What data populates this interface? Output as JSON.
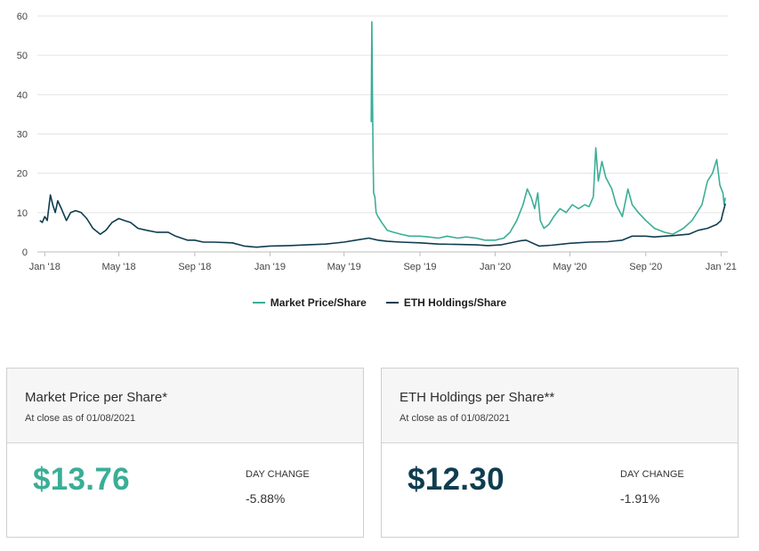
{
  "chart_data": {
    "type": "line",
    "ylim": [
      0,
      60
    ],
    "yticks": [
      0,
      10,
      20,
      30,
      40,
      50,
      60
    ],
    "xrange": [
      "2017-12-20",
      "2021-01-12"
    ],
    "xticks": [
      {
        "label": "Jan '18",
        "date": "2018-01-01"
      },
      {
        "label": "May '18",
        "date": "2018-05-01"
      },
      {
        "label": "Sep '18",
        "date": "2018-09-01"
      },
      {
        "label": "Jan '19",
        "date": "2019-01-01"
      },
      {
        "label": "May '19",
        "date": "2019-05-01"
      },
      {
        "label": "Sep '19",
        "date": "2019-09-01"
      },
      {
        "label": "Jan '20",
        "date": "2020-01-01"
      },
      {
        "label": "May '20",
        "date": "2020-05-01"
      },
      {
        "label": "Sep '20",
        "date": "2020-09-01"
      },
      {
        "label": "Jan '21",
        "date": "2021-01-01"
      }
    ],
    "grid": true,
    "legend_position": "bottom-center",
    "series": [
      {
        "name": "Market Price/Share",
        "color": "#3aae96",
        "points": [
          [
            "2019-06-14",
            33
          ],
          [
            "2019-06-15",
            58.5
          ],
          [
            "2019-06-16",
            40
          ],
          [
            "2019-06-17",
            24.5
          ],
          [
            "2019-06-18",
            15
          ],
          [
            "2019-06-20",
            14
          ],
          [
            "2019-06-22",
            10
          ],
          [
            "2019-06-25",
            9
          ],
          [
            "2019-07-01",
            7.5
          ],
          [
            "2019-07-10",
            5.5
          ],
          [
            "2019-07-20",
            5
          ],
          [
            "2019-08-01",
            4.5
          ],
          [
            "2019-08-15",
            4
          ],
          [
            "2019-09-01",
            4
          ],
          [
            "2019-09-15",
            3.8
          ],
          [
            "2019-10-01",
            3.5
          ],
          [
            "2019-10-15",
            4
          ],
          [
            "2019-11-01",
            3.5
          ],
          [
            "2019-11-15",
            3.8
          ],
          [
            "2019-12-01",
            3.5
          ],
          [
            "2019-12-15",
            3
          ],
          [
            "2020-01-01",
            3
          ],
          [
            "2020-01-15",
            3.5
          ],
          [
            "2020-01-25",
            5
          ],
          [
            "2020-02-05",
            8
          ],
          [
            "2020-02-15",
            12
          ],
          [
            "2020-02-22",
            16
          ],
          [
            "2020-02-28",
            14
          ],
          [
            "2020-03-05",
            11
          ],
          [
            "2020-03-10",
            15
          ],
          [
            "2020-03-14",
            8
          ],
          [
            "2020-03-20",
            6
          ],
          [
            "2020-03-28",
            7
          ],
          [
            "2020-04-05",
            9
          ],
          [
            "2020-04-15",
            11
          ],
          [
            "2020-04-25",
            10
          ],
          [
            "2020-05-05",
            12
          ],
          [
            "2020-05-15",
            11
          ],
          [
            "2020-05-25",
            12
          ],
          [
            "2020-06-01",
            11.5
          ],
          [
            "2020-06-08",
            14
          ],
          [
            "2020-06-12",
            26.5
          ],
          [
            "2020-06-16",
            18
          ],
          [
            "2020-06-22",
            23
          ],
          [
            "2020-06-28",
            19
          ],
          [
            "2020-07-08",
            16
          ],
          [
            "2020-07-15",
            12
          ],
          [
            "2020-07-25",
            9
          ],
          [
            "2020-08-03",
            16
          ],
          [
            "2020-08-10",
            12
          ],
          [
            "2020-08-20",
            10
          ],
          [
            "2020-09-01",
            8
          ],
          [
            "2020-09-15",
            6
          ],
          [
            "2020-10-01",
            5
          ],
          [
            "2020-10-15",
            4.5
          ],
          [
            "2020-11-01",
            6
          ],
          [
            "2020-11-15",
            8
          ],
          [
            "2020-12-01",
            12
          ],
          [
            "2020-12-10",
            18
          ],
          [
            "2020-12-18",
            20
          ],
          [
            "2020-12-25",
            23.5
          ],
          [
            "2020-12-30",
            17
          ],
          [
            "2021-01-04",
            15
          ],
          [
            "2021-01-06",
            12
          ],
          [
            "2021-01-08",
            13.8
          ]
        ]
      },
      {
        "name": "ETH Holdings/Share",
        "color": "#0f3d4f",
        "points": [
          [
            "2017-12-24",
            8
          ],
          [
            "2017-12-28",
            7.5
          ],
          [
            "2018-01-01",
            9
          ],
          [
            "2018-01-05",
            8
          ],
          [
            "2018-01-10",
            14.5
          ],
          [
            "2018-01-14",
            12
          ],
          [
            "2018-01-18",
            10
          ],
          [
            "2018-01-22",
            13
          ],
          [
            "2018-01-28",
            11
          ],
          [
            "2018-02-05",
            8
          ],
          [
            "2018-02-12",
            10
          ],
          [
            "2018-02-20",
            10.5
          ],
          [
            "2018-03-01",
            10
          ],
          [
            "2018-03-10",
            8.5
          ],
          [
            "2018-03-20",
            6
          ],
          [
            "2018-04-01",
            4.5
          ],
          [
            "2018-04-10",
            5.5
          ],
          [
            "2018-04-20",
            7.5
          ],
          [
            "2018-05-01",
            8.5
          ],
          [
            "2018-05-10",
            8
          ],
          [
            "2018-05-20",
            7.5
          ],
          [
            "2018-06-01",
            6
          ],
          [
            "2018-06-15",
            5.5
          ],
          [
            "2018-07-01",
            5
          ],
          [
            "2018-07-20",
            5
          ],
          [
            "2018-08-01",
            4
          ],
          [
            "2018-08-20",
            3
          ],
          [
            "2018-09-01",
            3
          ],
          [
            "2018-09-15",
            2.5
          ],
          [
            "2018-10-01",
            2.5
          ],
          [
            "2018-11-01",
            2.3
          ],
          [
            "2018-11-20",
            1.5
          ],
          [
            "2018-12-10",
            1.2
          ],
          [
            "2019-01-01",
            1.5
          ],
          [
            "2019-02-01",
            1.6
          ],
          [
            "2019-03-01",
            1.8
          ],
          [
            "2019-04-01",
            2
          ],
          [
            "2019-05-01",
            2.5
          ],
          [
            "2019-05-20",
            3
          ],
          [
            "2019-06-10",
            3.5
          ],
          [
            "2019-06-25",
            3
          ],
          [
            "2019-07-10",
            2.7
          ],
          [
            "2019-08-01",
            2.5
          ],
          [
            "2019-09-01",
            2.3
          ],
          [
            "2019-10-01",
            2
          ],
          [
            "2019-11-01",
            1.9
          ],
          [
            "2019-12-01",
            1.8
          ],
          [
            "2019-12-20",
            1.6
          ],
          [
            "2020-01-10",
            1.8
          ],
          [
            "2020-02-10",
            2.8
          ],
          [
            "2020-02-20",
            3
          ],
          [
            "2020-03-12",
            1.5
          ],
          [
            "2020-04-01",
            1.7
          ],
          [
            "2020-05-01",
            2.2
          ],
          [
            "2020-06-01",
            2.5
          ],
          [
            "2020-07-01",
            2.6
          ],
          [
            "2020-07-25",
            3
          ],
          [
            "2020-08-10",
            4
          ],
          [
            "2020-09-01",
            4
          ],
          [
            "2020-09-15",
            3.8
          ],
          [
            "2020-10-01",
            4
          ],
          [
            "2020-10-20",
            4.2
          ],
          [
            "2020-11-10",
            4.5
          ],
          [
            "2020-11-25",
            5.5
          ],
          [
            "2020-12-10",
            6
          ],
          [
            "2020-12-25",
            7
          ],
          [
            "2021-01-01",
            8
          ],
          [
            "2021-01-04",
            10
          ],
          [
            "2021-01-08",
            12.3
          ]
        ]
      }
    ]
  },
  "legend": [
    {
      "label": "Market Price/Share",
      "color": "#3aae96"
    },
    {
      "label": "ETH Holdings/Share",
      "color": "#0f3d4f"
    }
  ],
  "cards": [
    {
      "title": "Market Price per Share*",
      "subtitle": "At close as of 01/08/2021",
      "price": "$13.76",
      "price_color": "#3aae96",
      "day_change_label": "DAY CHANGE",
      "day_change_value": "-5.88%"
    },
    {
      "title": "ETH Holdings per Share**",
      "subtitle": "At close as of 01/08/2021",
      "price": "$12.30",
      "price_color": "#0f3d4f",
      "day_change_label": "DAY CHANGE",
      "day_change_value": "-1.91%"
    }
  ]
}
